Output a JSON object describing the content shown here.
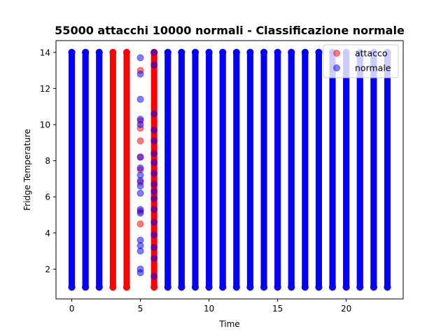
{
  "chart_data": {
    "type": "scatter",
    "title": "55000 attacchi 10000 normali - Classificazione normale",
    "xlabel": "Time",
    "ylabel": "Fridge Temperature",
    "xlim": [
      -1.15,
      24.15
    ],
    "ylim": [
      0.35,
      14.65
    ],
    "xticks": [
      0,
      5,
      10,
      15,
      20
    ],
    "yticks": [
      2,
      4,
      6,
      8,
      10,
      12,
      14
    ],
    "grid": false,
    "legend_position": "top-right",
    "y_range_all_hours": [
      1,
      14
    ],
    "series": [
      {
        "name": "attacco",
        "color": "#ff0000",
        "alpha": 0.5,
        "dense_columns_x": [
          0,
          1,
          2,
          3,
          4,
          6,
          7,
          8,
          9,
          10,
          11,
          12,
          13,
          14,
          15,
          16,
          17,
          18,
          19,
          20,
          21,
          22,
          23
        ],
        "fully_visible_columns_x": [
          3,
          4
        ],
        "partially_visible_columns_x": [
          6
        ],
        "sparse_points": [
          {
            "x": 5,
            "y": 13.0
          },
          {
            "x": 5,
            "y": 10.2
          },
          {
            "x": 5,
            "y": 9.8
          },
          {
            "x": 5,
            "y": 9.1
          },
          {
            "x": 5,
            "y": 8.2
          },
          {
            "x": 5,
            "y": 7.5
          },
          {
            "x": 5,
            "y": 6.8
          },
          {
            "x": 5,
            "y": 5.2
          },
          {
            "x": 5,
            "y": 4.5
          }
        ]
      },
      {
        "name": "normale",
        "color": "#0000ff",
        "alpha": 0.5,
        "dense_columns_x": [
          0,
          1,
          2,
          7,
          8,
          9,
          10,
          11,
          12,
          13,
          14,
          15,
          16,
          17,
          18,
          19,
          20,
          21,
          22,
          23
        ],
        "partial_column_6_y": [
          1.6,
          2.6,
          3.2,
          3.9,
          4.6,
          5.3,
          5.9,
          6.3,
          6.7,
          7.3,
          7.9,
          8.4,
          9.1,
          9.7,
          10.6,
          13.3,
          14.0
        ],
        "sparse_points": [
          {
            "x": 5,
            "y": 13.7
          },
          {
            "x": 5,
            "y": 12.8
          },
          {
            "x": 5,
            "y": 11.4
          },
          {
            "x": 5,
            "y": 10.3
          },
          {
            "x": 5,
            "y": 10.0
          },
          {
            "x": 5,
            "y": 8.2
          },
          {
            "x": 5,
            "y": 7.6
          },
          {
            "x": 5,
            "y": 7.2
          },
          {
            "x": 5,
            "y": 6.9
          },
          {
            "x": 5,
            "y": 6.6
          },
          {
            "x": 5,
            "y": 6.2
          },
          {
            "x": 5,
            "y": 5.3
          },
          {
            "x": 5,
            "y": 5.1
          },
          {
            "x": 5,
            "y": 3.6
          },
          {
            "x": 5,
            "y": 3.3
          },
          {
            "x": 5,
            "y": 3.0
          },
          {
            "x": 5,
            "y": 2.0
          },
          {
            "x": 5,
            "y": 1.8
          }
        ]
      }
    ]
  }
}
